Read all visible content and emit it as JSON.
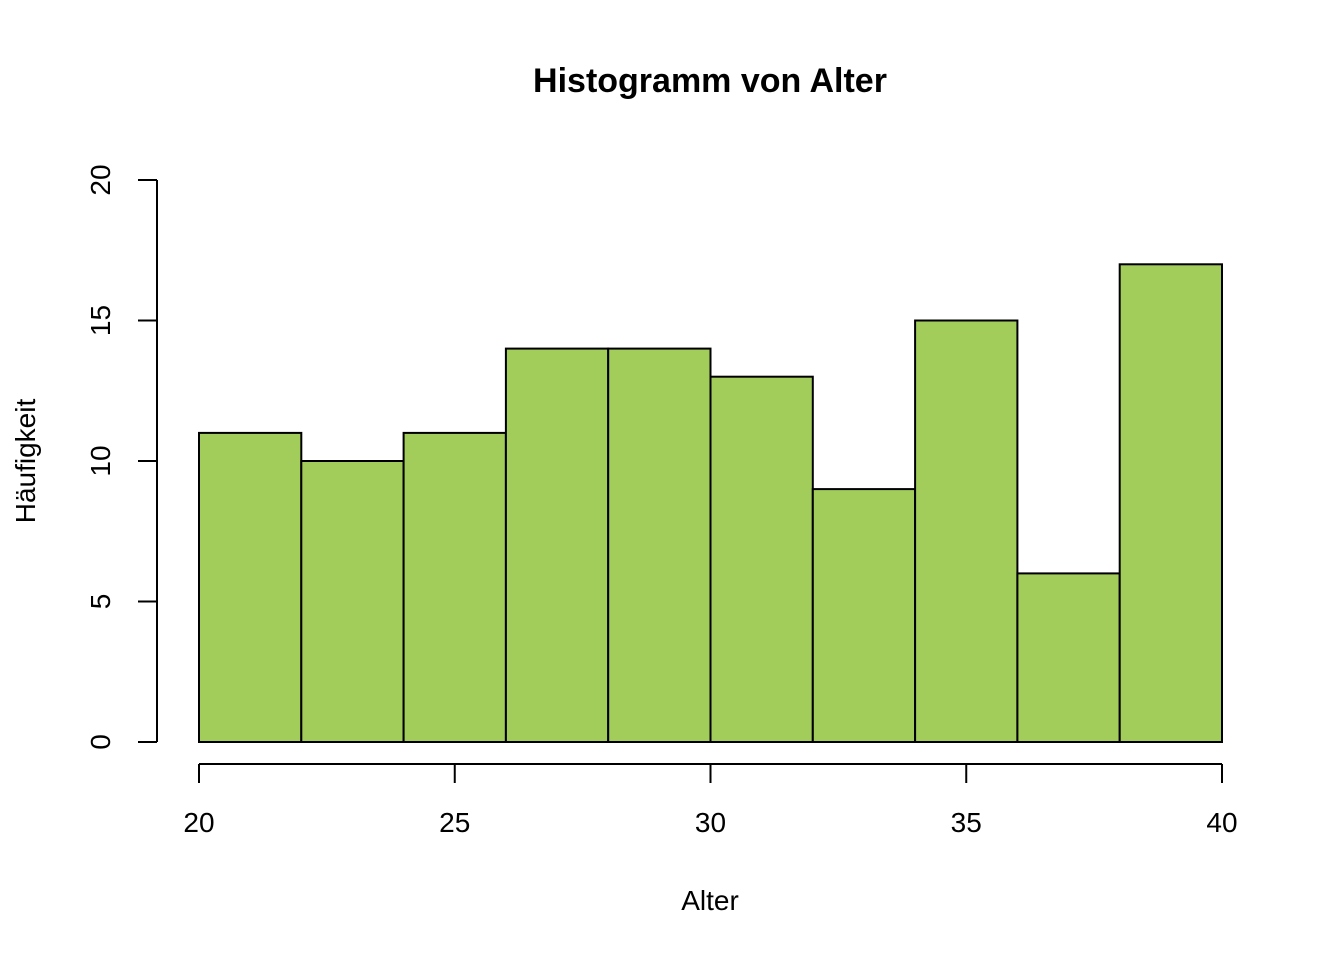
{
  "chart_data": {
    "type": "bar",
    "title": "Histogramm von Alter",
    "xlabel": "Alter",
    "ylabel": "Häufigkeit",
    "bins": [
      {
        "from": 20,
        "to": 22,
        "count": 11
      },
      {
        "from": 22,
        "to": 24,
        "count": 10
      },
      {
        "from": 24,
        "to": 26,
        "count": 11
      },
      {
        "from": 26,
        "to": 28,
        "count": 14
      },
      {
        "from": 28,
        "to": 30,
        "count": 14
      },
      {
        "from": 30,
        "to": 32,
        "count": 13
      },
      {
        "from": 32,
        "to": 34,
        "count": 9
      },
      {
        "from": 34,
        "to": 36,
        "count": 15
      },
      {
        "from": 36,
        "to": 38,
        "count": 6
      },
      {
        "from": 38,
        "to": 40,
        "count": 17
      }
    ],
    "xlim": [
      20,
      40
    ],
    "ylim": [
      0,
      20
    ],
    "xticks": [
      20,
      25,
      30,
      35,
      40
    ],
    "yticks": [
      0,
      5,
      10,
      15,
      20
    ],
    "bar_color": "#a2cd5a",
    "grid": false,
    "legend": "none"
  }
}
